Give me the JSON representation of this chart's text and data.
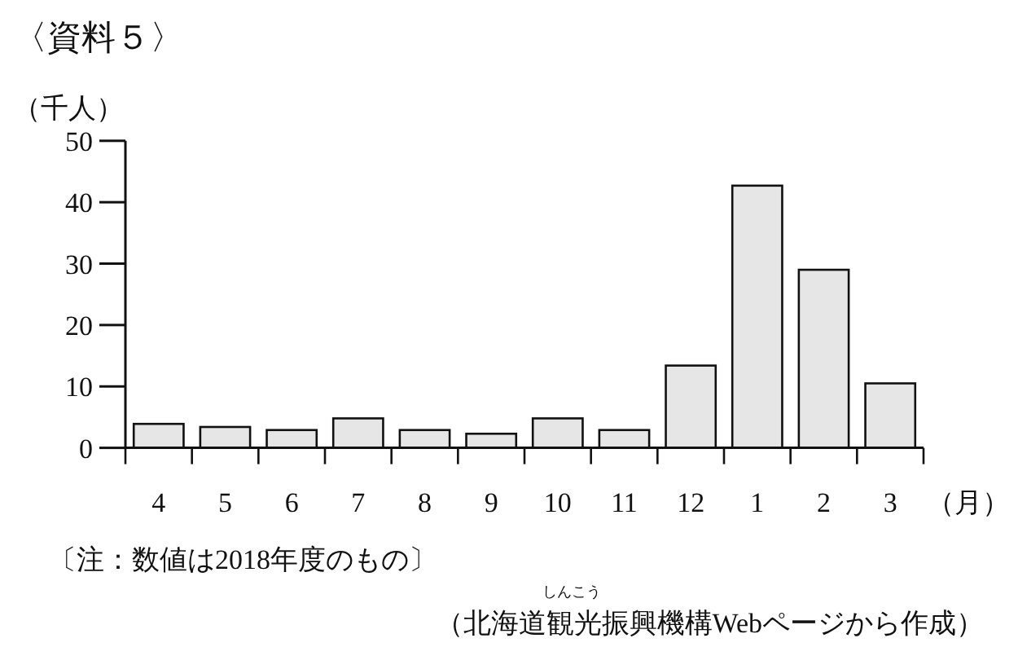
{
  "chart_data": {
    "type": "bar",
    "title": "〈資料５〉",
    "ylabel": "（千人）",
    "xlabel": "（月）",
    "categories": [
      "4",
      "5",
      "6",
      "7",
      "8",
      "9",
      "10",
      "11",
      "12",
      "1",
      "2",
      "3"
    ],
    "values": [
      3.9,
      3.4,
      2.9,
      4.8,
      2.9,
      2.3,
      4.8,
      2.9,
      13.4,
      42.7,
      29.0,
      10.5
    ],
    "color": "#e6e6e6",
    "ylim": [
      0,
      50
    ],
    "yticks": [
      0,
      10,
      20,
      30,
      40,
      50
    ],
    "annotations": [
      "〔注：数値は2018年度のもの〕",
      "しんこう",
      "（北海道観光振興機構Webページから作成）"
    ]
  }
}
